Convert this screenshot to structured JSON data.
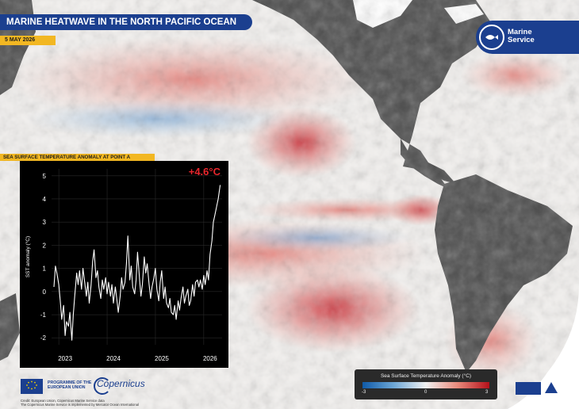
{
  "header": {
    "title": "MARINE HEATWAVE IN THE NORTH PACIFIC OCEAN",
    "date": "5 MAY 2026"
  },
  "brand": {
    "name_line1": "Marine",
    "name_line2": "Service"
  },
  "map": {
    "colors": {
      "ocean_neutral": "#f3f1ef",
      "land": "#4d4d4d",
      "anomaly_warm": "#c8202a",
      "anomaly_cool": "#2f6fbe"
    }
  },
  "inset": {
    "section_label": "SEA SURFACE TEMPERATURE ANOMALY AT POINT A",
    "badge": "+4.6°C"
  },
  "chart_data": {
    "type": "line",
    "title": "",
    "ylabel": "SST anomaly (°C)",
    "xlabel": "",
    "ylim": [
      -2.3,
      5.3
    ],
    "yticks": [
      -2,
      -1,
      0,
      1,
      2,
      3,
      4,
      5
    ],
    "xticks": [
      {
        "label": "2023",
        "x": 2023.0
      },
      {
        "label": "2024",
        "x": 2024.0
      },
      {
        "label": "2025",
        "x": 2025.0
      },
      {
        "label": "2026",
        "x": 2026.0
      }
    ],
    "grid": true,
    "series": [
      {
        "color": "#ffffff",
        "x": [
          2022.9,
          2022.93,
          2022.96,
          2023.0,
          2023.03,
          2023.06,
          2023.1,
          2023.13,
          2023.16,
          2023.2,
          2023.23,
          2023.27,
          2023.3,
          2023.33,
          2023.37,
          2023.4,
          2023.43,
          2023.47,
          2023.5,
          2023.53,
          2023.57,
          2023.6,
          2023.63,
          2023.67,
          2023.7,
          2023.73,
          2023.77,
          2023.8,
          2023.83,
          2023.87,
          2023.9,
          2023.93,
          2023.97,
          2024.0,
          2024.03,
          2024.07,
          2024.1,
          2024.13,
          2024.17,
          2024.2,
          2024.23,
          2024.27,
          2024.3,
          2024.33,
          2024.37,
          2024.4,
          2024.43,
          2024.47,
          2024.5,
          2024.53,
          2024.57,
          2024.6,
          2024.63,
          2024.67,
          2024.7,
          2024.73,
          2024.77,
          2024.8,
          2024.83,
          2024.87,
          2024.9,
          2024.93,
          2024.97,
          2025.0,
          2025.03,
          2025.07,
          2025.1,
          2025.13,
          2025.17,
          2025.2,
          2025.23,
          2025.27,
          2025.3,
          2025.33,
          2025.37,
          2025.4,
          2025.43,
          2025.47,
          2025.5,
          2025.53,
          2025.57,
          2025.6,
          2025.63,
          2025.67,
          2025.7,
          2025.73,
          2025.77,
          2025.8,
          2025.83,
          2025.87,
          2025.9,
          2025.93,
          2025.97,
          2026.0,
          2026.03,
          2026.07,
          2026.1,
          2026.13,
          2026.17,
          2026.2,
          2026.23,
          2026.27,
          2026.3,
          2026.34
        ],
        "y": [
          0.2,
          1.1,
          0.8,
          0.3,
          -0.4,
          -1.2,
          -0.6,
          -1.9,
          -1.3,
          -1.5,
          -0.9,
          -2.1,
          -1.0,
          -0.2,
          0.8,
          0.3,
          0.9,
          0.1,
          1.0,
          0.5,
          -0.2,
          0.4,
          -0.5,
          0.3,
          1.3,
          1.8,
          0.6,
          0.9,
          0.2,
          -0.3,
          0.5,
          0.1,
          0.6,
          -0.1,
          0.4,
          -0.2,
          0.3,
          -0.5,
          0.2,
          -0.3,
          -0.9,
          -0.2,
          0.6,
          0.1,
          0.4,
          1.2,
          2.4,
          0.5,
          1.1,
          0.2,
          -0.1,
          0.5,
          1.7,
          0.6,
          -0.2,
          0.3,
          1.5,
          0.8,
          1.2,
          0.3,
          -0.3,
          0.2,
          0.6,
          1.0,
          0.1,
          -0.4,
          0.4,
          0.9,
          -0.3,
          0.2,
          -0.5,
          -0.7,
          -0.3,
          -0.9,
          -1.0,
          -0.6,
          -1.2,
          -0.4,
          -0.8,
          -0.3,
          0.2,
          -0.5,
          -0.2,
          0.1,
          -0.6,
          -0.4,
          0.3,
          -0.2,
          0.4,
          0.5,
          0.2,
          0.5,
          0.1,
          0.7,
          0.3,
          0.9,
          0.5,
          1.6,
          2.2,
          3.0,
          3.3,
          3.7,
          4.0,
          4.6
        ]
      }
    ]
  },
  "legend": {
    "title": "Sea Surface Temperature Anomaly (°C)",
    "min_label": "-3",
    "mid_label": "0",
    "max_label": "3"
  },
  "footer": {
    "programme_line1": "PROGRAMME OF THE",
    "programme_line2": "EUROPEAN UNION",
    "copernicus": "Copernicus",
    "credit_line1": "Credit: European Union, Copernicus Marine Service data",
    "credit_line2": "The Copernicus Marine Service is implemented by Mercator Ocean International"
  }
}
